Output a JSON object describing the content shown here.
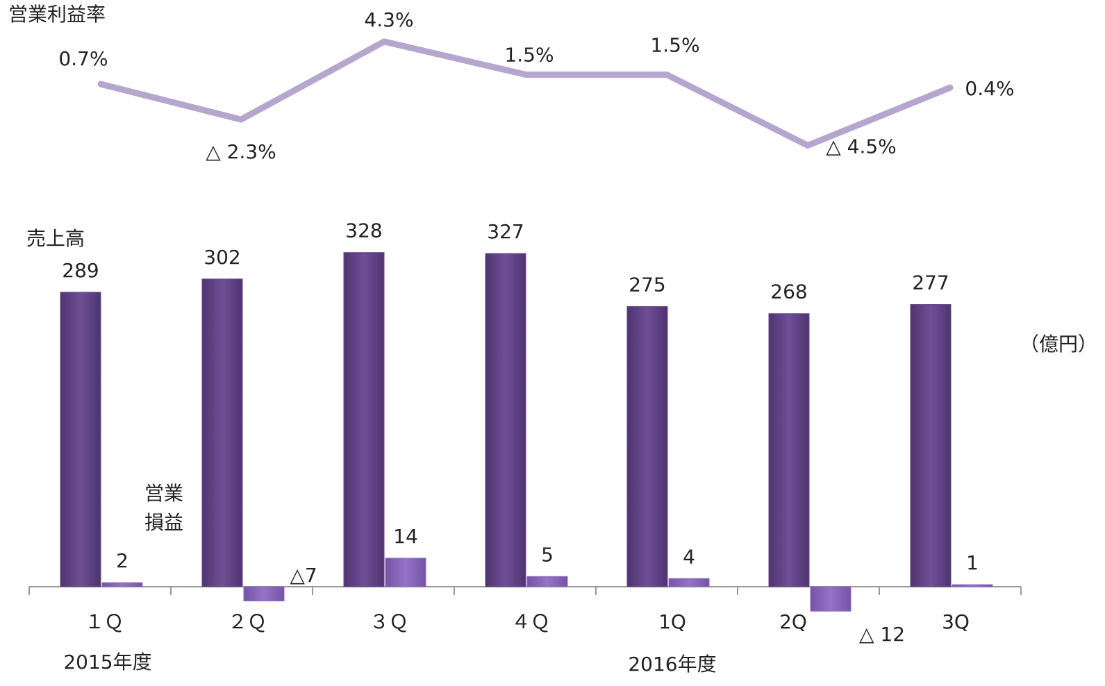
{
  "chart_data": {
    "type": "bar",
    "categories": [
      "１Ｑ",
      "２Ｑ",
      "３Ｑ",
      "４Ｑ",
      "1Q",
      "2Q",
      "3Q"
    ],
    "groups": [
      "2015年度",
      "2016年度"
    ],
    "unit": "（億円）",
    "series": [
      {
        "name": "売上高",
        "type": "bar",
        "color": "#6a4a8e",
        "values": [
          289,
          302,
          328,
          327,
          275,
          268,
          277
        ]
      },
      {
        "name": "営業損益",
        "type": "bar",
        "axis": "y2",
        "color": "#8f6cc0",
        "values": [
          2,
          -7,
          14,
          5,
          4,
          -12,
          1
        ],
        "value_labels": [
          "2",
          "△7",
          "14",
          "5",
          "4",
          "△ 12",
          "1"
        ]
      },
      {
        "name": "営業利益率",
        "type": "line",
        "axis": "y3",
        "color": "#b6a5cd",
        "values": [
          0.7,
          -2.3,
          4.3,
          1.5,
          1.5,
          -4.5,
          0.4
        ],
        "value_labels": [
          "0.7%",
          "△ 2.3%",
          "4.3%",
          "1.5%",
          "1.5%",
          "△ 4.5%",
          "0.4%"
        ]
      }
    ],
    "ylim": [
      0,
      400
    ],
    "y2lim": [
      0,
      200
    ],
    "y3lim": [
      -6,
      6
    ]
  }
}
